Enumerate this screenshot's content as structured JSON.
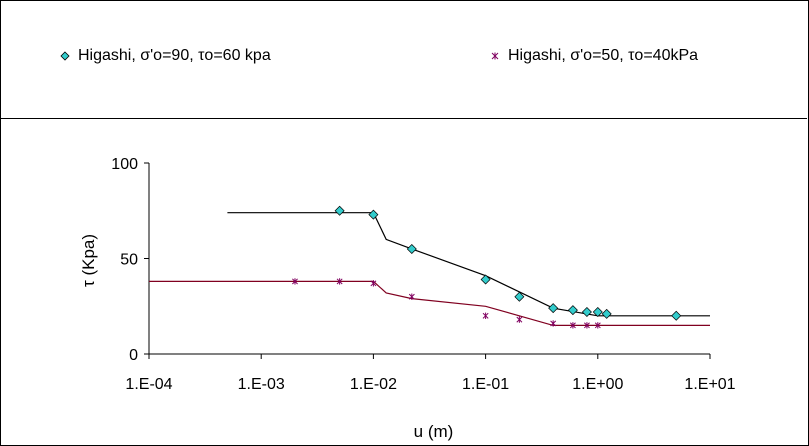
{
  "legend": {
    "items": [
      {
        "label": "Higashi, σ'o=90, τo=60 kpa",
        "marker": "diamond",
        "color": "#33cccc"
      },
      {
        "label": "Higashi, σ'o=50, τo=40kPa",
        "marker": "asterisk",
        "color": "#800060"
      }
    ]
  },
  "chart_data": {
    "type": "scatter",
    "xlabel": "u (m)",
    "ylabel": "τ (Kpa)",
    "xscale": "log",
    "xlim": [
      0.0001,
      10
    ],
    "ylim": [
      0,
      100
    ],
    "xticks": [
      "1.E-04",
      "1.E-03",
      "1.E-02",
      "1.E-01",
      "1.E+00",
      "1.E+01"
    ],
    "xtick_values": [
      0.0001,
      0.001,
      0.01,
      0.1,
      1,
      10
    ],
    "yticks": [
      "0",
      "50",
      "100"
    ],
    "ytick_values": [
      0,
      50,
      100
    ],
    "grid": false,
    "legend_position": "top",
    "series": [
      {
        "name": "Higashi, σ'o=90, τo=60 kpa",
        "marker": "diamond",
        "color": "#33cccc",
        "x": [
          0.005,
          0.01,
          0.022,
          0.1,
          0.2,
          0.4,
          0.6,
          0.8,
          1.0,
          1.2,
          5.0
        ],
        "y": [
          75,
          73,
          55,
          39,
          30,
          24,
          23,
          22,
          22,
          21,
          20
        ]
      },
      {
        "name": "Higashi, σ'o=50, τo=40kPa",
        "marker": "asterisk",
        "color": "#800060",
        "x": [
          0.002,
          0.005,
          0.01,
          0.022,
          0.1,
          0.2,
          0.4,
          0.6,
          0.8,
          1.0
        ],
        "y": [
          38,
          38,
          37,
          30,
          20,
          18,
          16,
          15,
          15,
          15
        ]
      }
    ],
    "fit_lines": [
      {
        "color": "#000000",
        "x": [
          0.0005,
          0.01,
          0.013,
          0.022,
          0.1,
          0.4,
          1.0,
          10
        ],
        "y": [
          74,
          74,
          60,
          55,
          41,
          24,
          20,
          20
        ]
      },
      {
        "color": "#800020",
        "x": [
          0.0001,
          0.01,
          0.013,
          0.022,
          0.1,
          0.4,
          10
        ],
        "y": [
          38,
          38,
          32,
          29,
          25,
          15,
          15
        ]
      }
    ]
  }
}
